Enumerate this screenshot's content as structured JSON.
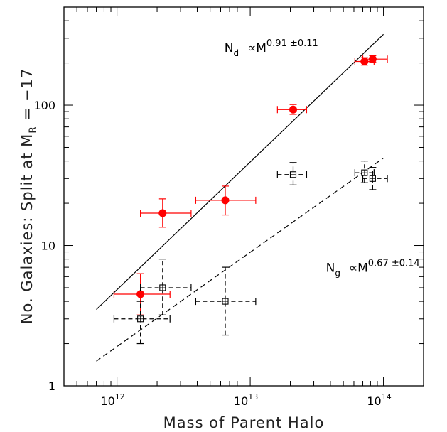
{
  "chart_data": {
    "type": "scatter",
    "xlabel": "Mass of Parent Halo",
    "ylabel_main": "No. Galaxies:  Split at M",
    "ylabel_sub": "R",
    "ylabel_tail": " = −17",
    "x_scale": "log",
    "y_scale": "log",
    "xlim": [
      400000000000.0,
      200000000000000.0
    ],
    "ylim": [
      1,
      500
    ],
    "x_tick_labels": [
      {
        "value": 1000000000000.0,
        "base": "10",
        "exp": "12"
      },
      {
        "value": 10000000000000.0,
        "base": "10",
        "exp": "13"
      },
      {
        "value": 100000000000000.0,
        "base": "10",
        "exp": "14"
      }
    ],
    "y_tick_labels": [
      {
        "value": 1,
        "text": "1"
      },
      {
        "value": 10,
        "text": "10"
      },
      {
        "value": 100,
        "text": "100"
      }
    ],
    "series": [
      {
        "name": "N_d",
        "marker": "filled-circle",
        "color": "#ff0000",
        "points": [
          {
            "x": 1500000000000.0,
            "y": 4.5,
            "xlo": 950000000000.0,
            "xhi": 2500000000000.0,
            "ylo": 3.2,
            "yhi": 6.3
          },
          {
            "x": 2200000000000.0,
            "y": 17,
            "xlo": 1500000000000.0,
            "xhi": 3600000000000.0,
            "ylo": 13.5,
            "yhi": 21.5
          },
          {
            "x": 6500000000000.0,
            "y": 21,
            "xlo": 3900000000000.0,
            "xhi": 11000000000000.0,
            "ylo": 16.5,
            "yhi": 26.5
          },
          {
            "x": 21000000000000.0,
            "y": 93,
            "xlo": 16000000000000.0,
            "xhi": 26500000000000.0,
            "ylo": 86,
            "yhi": 101
          },
          {
            "x": 72000000000000.0,
            "y": 205,
            "xlo": 61000000000000.0,
            "xhi": 85000000000000.0,
            "ylo": 193,
            "yhi": 218
          },
          {
            "x": 83000000000000.0,
            "y": 213,
            "xlo": 70000000000000.0,
            "xhi": 107000000000000.0,
            "ylo": 203,
            "yhi": 225
          }
        ]
      },
      {
        "name": "N_g",
        "marker": "open-square",
        "color": "#000000",
        "points": [
          {
            "x": 1500000000000.0,
            "y": 3.0,
            "xlo": 950000000000.0,
            "xhi": 2500000000000.0,
            "ylo": 2.0,
            "yhi": 4.0
          },
          {
            "x": 2200000000000.0,
            "y": 5.0,
            "xlo": 1500000000000.0,
            "xhi": 3600000000000.0,
            "ylo": 3.2,
            "yhi": 8.0
          },
          {
            "x": 6500000000000.0,
            "y": 4.0,
            "xlo": 3900000000000.0,
            "xhi": 11000000000000.0,
            "ylo": 2.3,
            "yhi": 7.0
          },
          {
            "x": 21000000000000.0,
            "y": 32,
            "xlo": 16000000000000.0,
            "xhi": 26500000000000.0,
            "ylo": 27,
            "yhi": 39
          },
          {
            "x": 72000000000000.0,
            "y": 33,
            "xlo": 61000000000000.0,
            "xhi": 85000000000000.0,
            "ylo": 28,
            "yhi": 40
          },
          {
            "x": 83000000000000.0,
            "y": 30,
            "xlo": 70000000000000.0,
            "xhi": 107000000000000.0,
            "ylo": 25,
            "yhi": 36
          }
        ]
      }
    ],
    "fits": [
      {
        "series": "N_d",
        "style": "solid",
        "x_start": 700000000000.0,
        "y_start": 3.5,
        "x_end": 100000000000000.0,
        "y_end": 320
      },
      {
        "series": "N_g",
        "style": "dashed",
        "x_start": 700000000000.0,
        "y_start": 1.5,
        "x_end": 100000000000000.0,
        "y_end": 42
      }
    ],
    "annotations": [
      {
        "letter": "N",
        "sub": "d",
        "prop": "∝M",
        "exp": "0.91 ±0.11",
        "anchor_x": 6400000000000.0,
        "anchor_y": 240
      },
      {
        "letter": "N",
        "sub": "g",
        "prop": "∝M",
        "exp": "0.67 ±0.14",
        "anchor_x": 37000000000000.0,
        "anchor_y": 6.5
      }
    ]
  }
}
